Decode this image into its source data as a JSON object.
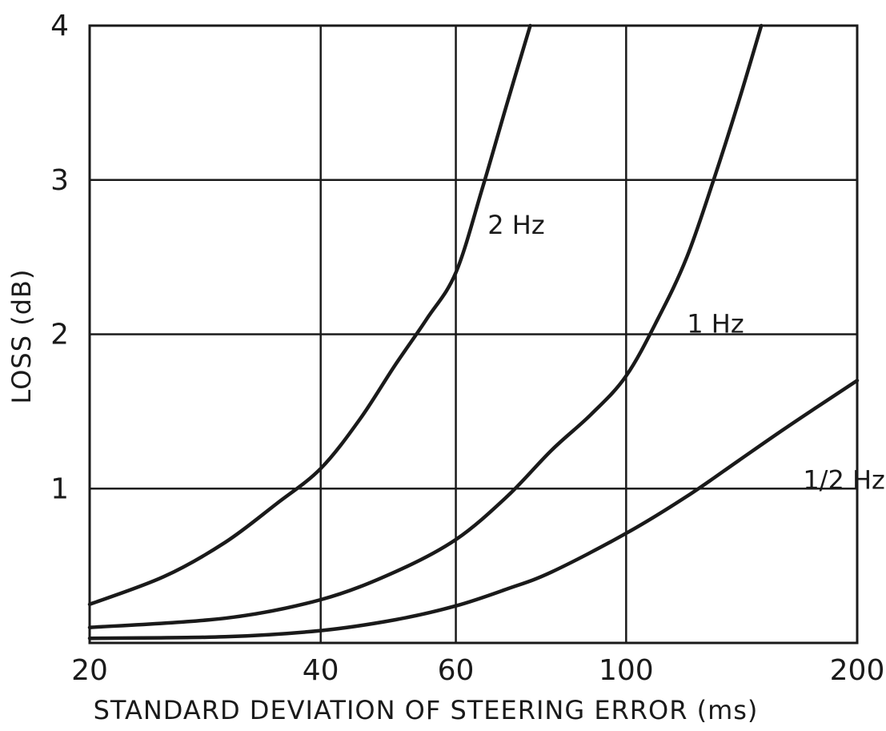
{
  "chart_data": {
    "type": "line",
    "xlabel": "STANDARD DEVIATION OF STEERING ERROR (ms)",
    "ylabel": "LOSS (dB)",
    "xscale": "log",
    "xlim": [
      20,
      200
    ],
    "ylim": [
      0,
      4
    ],
    "xticks": [
      20,
      40,
      60,
      100,
      200
    ],
    "xtick_labels": [
      "20",
      "40",
      "60",
      "100",
      "200"
    ],
    "yticks": [
      1,
      2,
      3,
      4
    ],
    "ytick_labels": [
      "1",
      "2",
      "3",
      "4"
    ],
    "grid": true,
    "legend": "none",
    "series": [
      {
        "name": "2 Hz",
        "x": [
          20,
          25,
          30,
          35,
          40,
          45,
          50,
          55,
          60,
          65,
          70,
          75
        ],
        "y": [
          0.25,
          0.43,
          0.65,
          0.9,
          1.13,
          1.45,
          1.8,
          2.1,
          2.4,
          2.95,
          3.5,
          4.0
        ]
      },
      {
        "name": "1 Hz",
        "x": [
          20,
          30,
          40,
          50,
          60,
          70,
          80,
          90,
          100,
          110,
          120,
          130,
          140,
          150
        ],
        "y": [
          0.1,
          0.16,
          0.28,
          0.46,
          0.67,
          0.95,
          1.25,
          1.48,
          1.73,
          2.1,
          2.5,
          3.0,
          3.5,
          4.0
        ]
      },
      {
        "name": "1/2 Hz",
        "x": [
          20,
          30,
          40,
          50,
          60,
          70,
          80,
          100,
          120,
          140,
          160,
          180,
          200
        ],
        "y": [
          0.03,
          0.04,
          0.08,
          0.15,
          0.24,
          0.35,
          0.46,
          0.71,
          0.95,
          1.18,
          1.38,
          1.55,
          1.7
        ]
      }
    ]
  }
}
